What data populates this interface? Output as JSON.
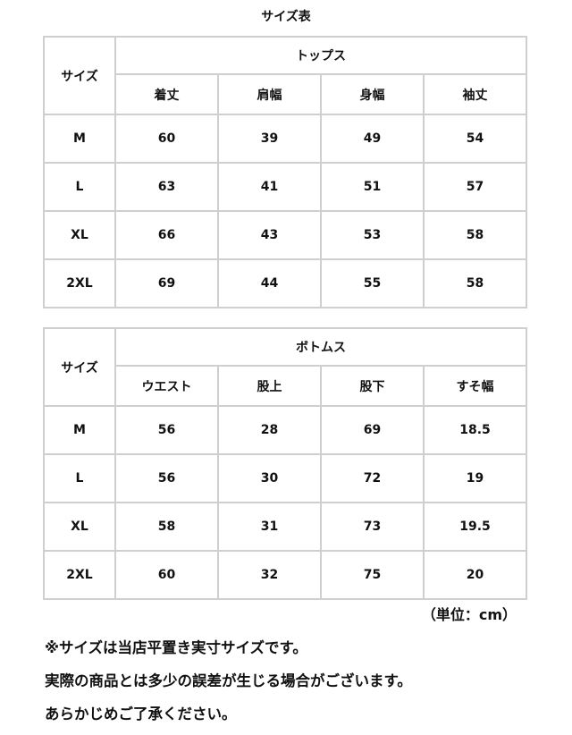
{
  "title": "サイズ表",
  "tables": [
    {
      "size_label": "サイズ",
      "group": "トップス",
      "columns": [
        "着丈",
        "肩幅",
        "身幅",
        "袖丈"
      ],
      "rows": [
        {
          "size": "M",
          "values": [
            "60",
            "39",
            "49",
            "54"
          ]
        },
        {
          "size": "L",
          "values": [
            "63",
            "41",
            "51",
            "57"
          ]
        },
        {
          "size": "XL",
          "values": [
            "66",
            "43",
            "53",
            "58"
          ]
        },
        {
          "size": "2XL",
          "values": [
            "69",
            "44",
            "55",
            "58"
          ]
        }
      ]
    },
    {
      "size_label": "サイズ",
      "group": "ボトムス",
      "columns": [
        "ウエスト",
        "股上",
        "股下",
        "すそ幅"
      ],
      "rows": [
        {
          "size": "M",
          "values": [
            "56",
            "28",
            "69",
            "18.5"
          ]
        },
        {
          "size": "L",
          "values": [
            "56",
            "30",
            "72",
            "19"
          ]
        },
        {
          "size": "XL",
          "values": [
            "58",
            "31",
            "73",
            "19.5"
          ]
        },
        {
          "size": "2XL",
          "values": [
            "60",
            "32",
            "75",
            "20"
          ]
        }
      ]
    }
  ],
  "unit": "（単位：cm）",
  "notes": [
    "※サイズは当店平置き実寸サイズです。",
    "実際の商品とは多少の誤差が生じる場合がございます。",
    "あらかじめご了承ください。"
  ]
}
